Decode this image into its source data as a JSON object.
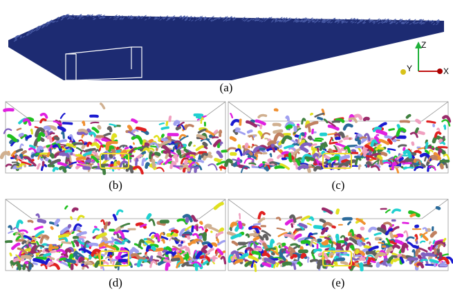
{
  "figure": {
    "overview": {
      "label": "(a)",
      "axes": {
        "z": "Z",
        "y": "Y",
        "x": "X"
      }
    },
    "panels": [
      {
        "label": "(b)"
      },
      {
        "label": "(c)"
      },
      {
        "label": "(d)"
      },
      {
        "label": "(e)"
      }
    ]
  }
}
